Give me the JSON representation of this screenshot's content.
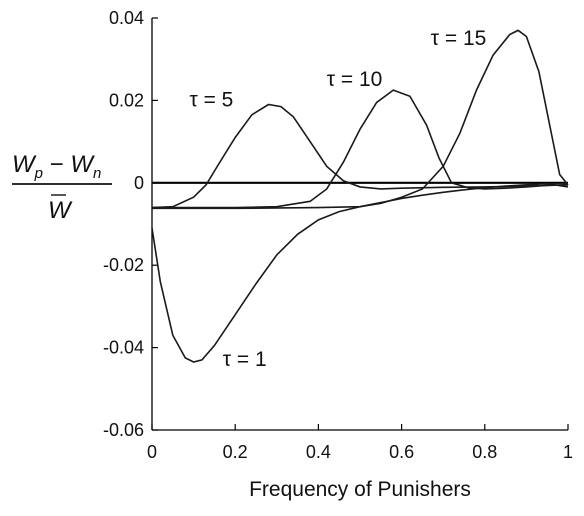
{
  "chart_data": {
    "type": "line",
    "xlabel": "Frequency of Punishers",
    "ylabel": "Wp − Wn / W̄",
    "ylabel_parts": {
      "numerator_left": "W",
      "sub_p": "p",
      "minus": " − ",
      "numerator_right": "W",
      "sub_n": "n",
      "denominator": "W"
    },
    "xlim": [
      0,
      1
    ],
    "ylim": [
      -0.06,
      0.04
    ],
    "x_ticks": [
      "0",
      "0.2",
      "0.4",
      "0.6",
      "0.8",
      "1"
    ],
    "y_ticks": [
      "0.04",
      "0.02",
      "0",
      "-0.02",
      "-0.04",
      "-0.06"
    ],
    "grid": false,
    "reference_line_y": 0,
    "annotations": [
      {
        "text": "τ = 1",
        "x": 0.17,
        "y": -0.0445
      },
      {
        "text": "τ = 5",
        "x": 0.09,
        "y": 0.0185
      },
      {
        "text": "τ = 10",
        "x": 0.42,
        "y": 0.0235
      },
      {
        "text": "τ = 15",
        "x": 0.67,
        "y": 0.0335
      }
    ],
    "series": [
      {
        "x": [
          0,
          0.02,
          0.05,
          0.08,
          0.1,
          0.12,
          0.15,
          0.2,
          0.25,
          0.3,
          0.35,
          0.4,
          0.45,
          0.5,
          0.55,
          0.6,
          0.65,
          0.7,
          0.75,
          0.8,
          0.85,
          0.9,
          0.95,
          1.0
        ],
        "values": [
          -0.011,
          -0.024,
          -0.037,
          -0.0425,
          -0.0435,
          -0.043,
          -0.0395,
          -0.032,
          -0.0245,
          -0.0175,
          -0.0125,
          -0.009,
          -0.007,
          -0.0058,
          -0.0048,
          -0.0038,
          -0.003,
          -0.0023,
          -0.0017,
          -0.0012,
          -0.0008,
          -0.0005,
          -0.0002,
          -0.001
        ]
      },
      {
        "x": [
          0,
          0.05,
          0.1,
          0.13,
          0.16,
          0.2,
          0.24,
          0.28,
          0.31,
          0.34,
          0.38,
          0.42,
          0.46,
          0.5,
          0.55,
          0.6,
          0.7,
          0.8,
          0.9,
          1.0
        ],
        "values": [
          -0.006,
          -0.0058,
          -0.0035,
          -0.0005,
          0.0045,
          0.011,
          0.0165,
          0.019,
          0.0185,
          0.016,
          0.01,
          0.004,
          0.0005,
          -0.001,
          -0.0015,
          -0.0013,
          -0.0011,
          -0.001,
          -0.0008,
          -0.0005
        ]
      },
      {
        "x": [
          0,
          0.1,
          0.2,
          0.3,
          0.38,
          0.42,
          0.46,
          0.5,
          0.54,
          0.58,
          0.62,
          0.66,
          0.69,
          0.72,
          0.76,
          0.8,
          0.85,
          0.9,
          0.95,
          1.0
        ],
        "values": [
          -0.006,
          -0.006,
          -0.006,
          -0.0058,
          -0.0045,
          -0.0015,
          0.005,
          0.013,
          0.0195,
          0.0225,
          0.021,
          0.014,
          0.006,
          0.0,
          -0.0012,
          -0.0015,
          -0.0013,
          -0.001,
          -0.0006,
          -0.0005
        ]
      },
      {
        "x": [
          0,
          0.2,
          0.4,
          0.5,
          0.55,
          0.6,
          0.65,
          0.7,
          0.74,
          0.78,
          0.82,
          0.86,
          0.88,
          0.9,
          0.93,
          0.96,
          0.98,
          1.0
        ],
        "values": [
          -0.0062,
          -0.0062,
          -0.006,
          -0.0058,
          -0.005,
          -0.0035,
          -0.0015,
          0.004,
          0.012,
          0.0225,
          0.031,
          0.036,
          0.037,
          0.0355,
          0.027,
          0.012,
          0.002,
          -0.0005
        ]
      }
    ]
  }
}
